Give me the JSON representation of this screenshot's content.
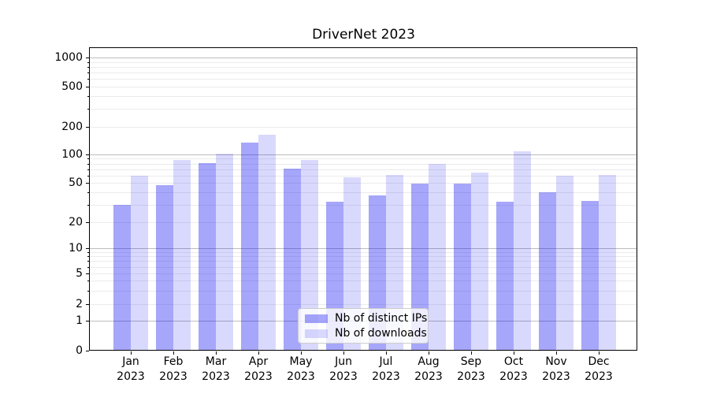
{
  "chart_data": {
    "type": "bar",
    "title": "DriverNet 2023",
    "categories": [
      "Jan",
      "Feb",
      "Mar",
      "Apr",
      "May",
      "Jun",
      "Jul",
      "Aug",
      "Sep",
      "Oct",
      "Nov",
      "Dec"
    ],
    "x_year_line": "2023",
    "series": [
      {
        "name": "Nb of distinct IPs",
        "color": "rgba(0,0,240,0.35)",
        "values": [
          30,
          47,
          81,
          134,
          71,
          32,
          37,
          49,
          49,
          32,
          40,
          33
        ]
      },
      {
        "name": "Nb of downloads",
        "color": "rgba(0,0,240,0.15)",
        "values": [
          60,
          88,
          101,
          164,
          87,
          57,
          61,
          80,
          64,
          108,
          60,
          61
        ]
      }
    ],
    "y_axis": {
      "scale": "symlog",
      "ticks": [
        1000,
        500,
        200,
        100,
        50,
        20,
        10,
        5,
        2,
        1,
        0
      ],
      "ylim": [
        0,
        1150
      ],
      "major_grid_at": [
        1,
        10,
        100,
        1000
      ],
      "minor_grid_subs": [
        2,
        3,
        4,
        5,
        6,
        7,
        8,
        9
      ]
    },
    "legend": {
      "position": "lower center"
    },
    "colors": {
      "grid_major": "#bdbdbd",
      "grid_minor": "#ebebeb",
      "axis": "#000000",
      "background": "#ffffff"
    }
  }
}
